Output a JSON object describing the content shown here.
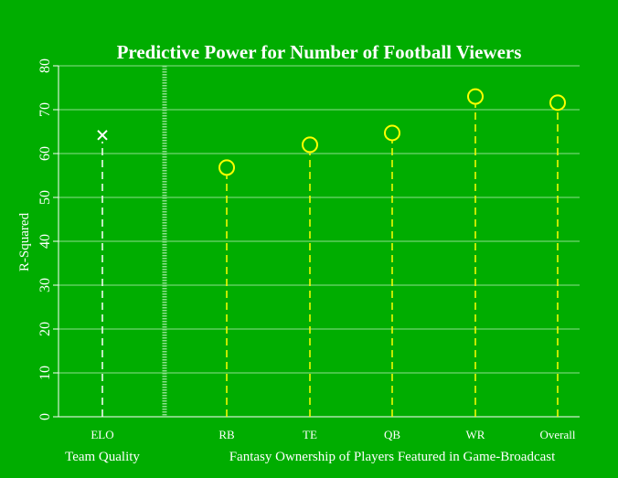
{
  "chart_data": {
    "type": "scatter",
    "title": "Predictive Power for Number of Football Viewers",
    "ylabel": "R-Squared",
    "ylim": [
      0,
      80
    ],
    "yticks": [
      0,
      10,
      20,
      30,
      40,
      50,
      60,
      70,
      80
    ],
    "grid": true,
    "groups": [
      {
        "label": "Team Quality",
        "categories": [
          "ELO"
        ]
      },
      {
        "label": "Fantasy Ownership of Players Featured in Game-Broadcast",
        "categories": [
          "RB",
          "TE",
          "QB",
          "WR",
          "Overall"
        ]
      }
    ],
    "points": [
      {
        "category": "ELO",
        "value": 64.2,
        "marker": "x",
        "color": "#ffffff"
      },
      {
        "category": "RB",
        "value": 56.8,
        "marker": "circle",
        "color": "#ffff00"
      },
      {
        "category": "TE",
        "value": 62.0,
        "marker": "circle",
        "color": "#ffff00"
      },
      {
        "category": "QB",
        "value": 64.7,
        "marker": "circle",
        "color": "#ffff00"
      },
      {
        "category": "WR",
        "value": 73.0,
        "marker": "circle",
        "color": "#ffff00"
      },
      {
        "category": "Overall",
        "value": 71.6,
        "marker": "circle",
        "color": "#ffff00"
      }
    ],
    "colors": {
      "background": "#00ad00",
      "grid": "#8ee08e",
      "text": "#ffffff",
      "highlight": "#ffff00"
    }
  }
}
